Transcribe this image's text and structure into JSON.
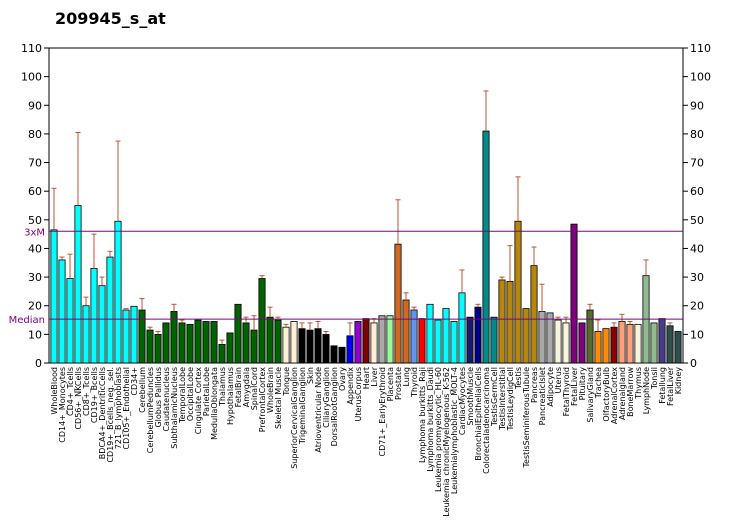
{
  "chart_data": {
    "type": "bar",
    "title": "209945_s_at",
    "xlabel": "",
    "ylabel": "",
    "ylim": [
      0,
      110
    ],
    "yticks": [
      0,
      10,
      20,
      30,
      40,
      50,
      60,
      70,
      80,
      90,
      100,
      110
    ],
    "y2ticks": [
      0,
      10,
      20,
      30,
      40,
      50,
      60,
      70,
      80,
      90,
      100,
      110
    ],
    "grid": false,
    "reference_lines": [
      {
        "label": "3xM",
        "value": 46.0,
        "color": "#800080"
      },
      {
        "label": "Median",
        "value": 15.3,
        "color": "#800080"
      }
    ],
    "bars": [
      {
        "label": "WholeBlood",
        "value": 46.5,
        "err": 14.5,
        "color": "#00ffff"
      },
      {
        "label": "CD14+_Monocytes",
        "value": 36.0,
        "err": 1.0,
        "color": "#00ffff"
      },
      {
        "label": "CD4+_Tcells",
        "value": 29.5,
        "err": 8.5,
        "color": "#00ffff"
      },
      {
        "label": "CD56+_NKCells",
        "value": 55.0,
        "err": 25.5,
        "color": "#00ffff"
      },
      {
        "label": "CD8+_Tcells",
        "value": 20.0,
        "err": 3.0,
        "color": "#00ffff"
      },
      {
        "label": "CD19+_Bcells",
        "value": 33.0,
        "err": 12.0,
        "color": "#00ffff"
      },
      {
        "label": "BDCA4+_DentriticCells",
        "value": 27.0,
        "err": 3.0,
        "color": "#00ffff"
      },
      {
        "label": "CD19+_Bcells_neg._sel.",
        "value": 37.0,
        "err": 2.0,
        "color": "#00ffff"
      },
      {
        "label": "721_B_lymphoblasts",
        "value": 49.5,
        "err": 28.0,
        "color": "#00ffff"
      },
      {
        "label": "CD105+_Endothelial",
        "value": 18.5,
        "err": 0.5,
        "color": "#00ffff"
      },
      {
        "label": "CD34+",
        "value": 19.8,
        "err": 0,
        "color": "#00ffff"
      },
      {
        "label": "Cerebellum",
        "value": 18.5,
        "err": 4.0,
        "color": "#006400"
      },
      {
        "label": "CerebellumPeduncles",
        "value": 11.5,
        "err": 1.0,
        "color": "#006400"
      },
      {
        "label": "Globus Pallidus",
        "value": 10.0,
        "err": 1.0,
        "color": "#006400"
      },
      {
        "label": "Caudatenucleus",
        "value": 14.0,
        "err": 0,
        "color": "#006400"
      },
      {
        "label": "SubthalamicNucleus",
        "value": 18.0,
        "err": 2.5,
        "color": "#006400"
      },
      {
        "label": "TemporalLobe",
        "value": 14.0,
        "err": 1.0,
        "color": "#006400"
      },
      {
        "label": "OccipitalLobe",
        "value": 13.5,
        "err": 0,
        "color": "#006400"
      },
      {
        "label": "Cingulate Cortex",
        "value": 15.0,
        "err": 0,
        "color": "#006400"
      },
      {
        "label": "ParietalLobe",
        "value": 14.5,
        "err": 0,
        "color": "#006400"
      },
      {
        "label": "MedullaOblongata",
        "value": 14.5,
        "err": 0,
        "color": "#006400"
      },
      {
        "label": "Thalamus",
        "value": 6.5,
        "err": 1.5,
        "color": "#006400"
      },
      {
        "label": "Hypothalamus",
        "value": 10.5,
        "err": 0,
        "color": "#006400"
      },
      {
        "label": "FetalBrain",
        "value": 20.5,
        "err": 0,
        "color": "#006400"
      },
      {
        "label": "Amygdala",
        "value": 14.0,
        "err": 2.0,
        "color": "#006400"
      },
      {
        "label": "SpinalCord",
        "value": 11.5,
        "err": 5.0,
        "color": "#006400"
      },
      {
        "label": "PrefrontalCortex",
        "value": 29.5,
        "err": 1.0,
        "color": "#006400"
      },
      {
        "label": "WholeBrain",
        "value": 16.0,
        "err": 3.5,
        "color": "#006400"
      },
      {
        "label": "Skeletal Muscle",
        "value": 15.0,
        "err": 1.0,
        "color": "#006400"
      },
      {
        "label": "Tongue",
        "value": 12.5,
        "err": 1.0,
        "color": "#ffefd5"
      },
      {
        "label": "SuperiorCervicalGanglion",
        "value": 14.5,
        "err": 0,
        "color": "#ffefd5"
      },
      {
        "label": "TrigeminalGanglion",
        "value": 12.0,
        "err": 2.0,
        "color": "#000000"
      },
      {
        "label": "Skin",
        "value": 11.5,
        "err": 2.5,
        "color": "#000000"
      },
      {
        "label": "Atrioventricular Node",
        "value": 12.0,
        "err": 2.5,
        "color": "#000000"
      },
      {
        "label": "CiliaryGanglion",
        "value": 10.0,
        "err": 1.0,
        "color": "#000000"
      },
      {
        "label": "DorsalRootGanglion",
        "value": 6.0,
        "err": 0,
        "color": "#000000"
      },
      {
        "label": "Ovary",
        "value": 5.5,
        "err": 0,
        "color": "#000000"
      },
      {
        "label": "Appendix",
        "value": 9.5,
        "err": 4.5,
        "color": "#0000ff"
      },
      {
        "label": "UterusCorpus",
        "value": 14.5,
        "err": 0,
        "color": "#9400d3"
      },
      {
        "label": "Heart",
        "value": 15.5,
        "err": 0,
        "color": "#800000"
      },
      {
        "label": "Liver",
        "value": 14.0,
        "err": 1.5,
        "color": "#ffefd5"
      },
      {
        "label": "CD71+_EarlyErythroid",
        "value": 16.5,
        "err": 0,
        "color": "#a9a9a9"
      },
      {
        "label": "Placenta",
        "value": 16.5,
        "err": 0,
        "color": "#98fb98"
      },
      {
        "label": "Prostate",
        "value": 41.5,
        "err": 15.5,
        "color": "#d2691e"
      },
      {
        "label": "Lung",
        "value": 22.0,
        "err": 2.5,
        "color": "#d2691e"
      },
      {
        "label": "Thyroid",
        "value": 18.5,
        "err": 1.0,
        "color": "#6495ed"
      },
      {
        "label": "Lymphoma burkitts_Raji",
        "value": 15.5,
        "err": 0,
        "color": "#ff0000"
      },
      {
        "label": "Lymphoma burkitts_Daudi",
        "value": 20.5,
        "err": 0,
        "color": "#00ffff"
      },
      {
        "label": "Leukemia promyelocytic_HL-60",
        "value": 15.0,
        "err": 0,
        "color": "#00ffff"
      },
      {
        "label": "Leukemia chronicMyelogenous_K-562",
        "value": 19.0,
        "err": 0,
        "color": "#00ffff"
      },
      {
        "label": "Leukemialymphoblastic_MOLT-4",
        "value": 14.5,
        "err": 0,
        "color": "#00ffff"
      },
      {
        "label": "CardiacMyocytes",
        "value": 24.5,
        "err": 8.0,
        "color": "#00ffff"
      },
      {
        "label": "SmoothMuscle",
        "value": 16.0,
        "err": 0,
        "color": "#191970"
      },
      {
        "label": "BronchialEpithelialCells",
        "value": 19.5,
        "err": 1.0,
        "color": "#00008b"
      },
      {
        "label": "Colorectaladenocarcinoma",
        "value": 81.0,
        "err": 14.0,
        "color": "#008b8b"
      },
      {
        "label": "TestisGermCell",
        "value": 16.0,
        "err": 0,
        "color": "#008b8b"
      },
      {
        "label": "TestisInterstitial",
        "value": 29.0,
        "err": 1.0,
        "color": "#b8860b"
      },
      {
        "label": "TestisLeydigCell",
        "value": 28.5,
        "err": 12.5,
        "color": "#b8860b"
      },
      {
        "label": "Testis",
        "value": 49.5,
        "err": 15.5,
        "color": "#b8860b"
      },
      {
        "label": "TestisSeminiferousTubule",
        "value": 19.0,
        "err": 0,
        "color": "#b8860b"
      },
      {
        "label": "Pancreas",
        "value": 34.0,
        "err": 6.5,
        "color": "#b8860b"
      },
      {
        "label": "PancreaticIslet",
        "value": 18.0,
        "err": 9.5,
        "color": "#a9a9a9"
      },
      {
        "label": "Adipocyte",
        "value": 17.5,
        "err": 0,
        "color": "#a9a9a9"
      },
      {
        "label": "Uterus",
        "value": 15.0,
        "err": 1.0,
        "color": "#f5f5dc"
      },
      {
        "label": "FetalThyroid",
        "value": 14.0,
        "err": 2.0,
        "color": "#f5f5dc"
      },
      {
        "label": "FetalLiver",
        "value": 48.5,
        "err": 0,
        "color": "#800080"
      },
      {
        "label": "Pituitary",
        "value": 14.0,
        "err": 0,
        "color": "#800080"
      },
      {
        "label": "SalivaryGland",
        "value": 18.5,
        "err": 2.0,
        "color": "#556b2f"
      },
      {
        "label": "Trachea",
        "value": 11.0,
        "err": 4.0,
        "color": "#ff8c00"
      },
      {
        "label": "OlfactoryBulb",
        "value": 12.0,
        "err": 0,
        "color": "#ff8c00"
      },
      {
        "label": "AdrenalCortex",
        "value": 12.5,
        "err": 1.5,
        "color": "#8b0000"
      },
      {
        "label": "Adrenalgland",
        "value": 14.5,
        "err": 2.5,
        "color": "#ffa07a"
      },
      {
        "label": "BoneMarrow",
        "value": 13.5,
        "err": 1.0,
        "color": "#ffa07a"
      },
      {
        "label": "Thymus",
        "value": 13.5,
        "err": 0,
        "color": "#f5f5dc"
      },
      {
        "label": "LymphNode",
        "value": 30.5,
        "err": 5.5,
        "color": "#8fbc8f"
      },
      {
        "label": "Tonsil",
        "value": 14.0,
        "err": 0,
        "color": "#8fbc8f"
      },
      {
        "label": "Fetallung",
        "value": 15.5,
        "err": 0,
        "color": "#483d8b"
      },
      {
        "label": "FetalLiver",
        "value": 13.0,
        "err": 1.0,
        "color": "#2f4f4f"
      },
      {
        "label": "Kidney",
        "value": 11.0,
        "err": 0,
        "color": "#2f4f4f"
      }
    ]
  }
}
